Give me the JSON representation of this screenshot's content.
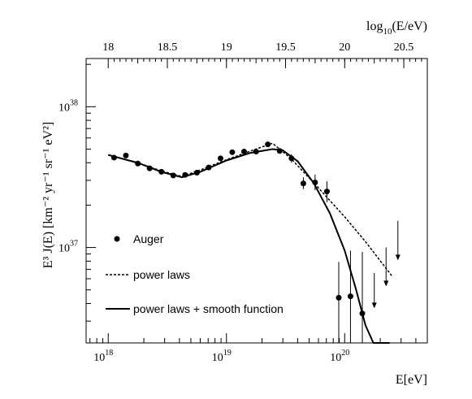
{
  "chart_data": {
    "type": "scatter",
    "xlabel": "E[eV]",
    "x2label_base": "log",
    "x2label_sub": "10",
    "x2label_rest": "(E/eV)",
    "ylabel": "E³ J(E) [km⁻² yr⁻¹ sr⁻¹ eV²]",
    "x_scale": "log",
    "y_scale": "log",
    "xlim": [
      6.5e+17,
      5e+20
    ],
    "ylim": [
      2.1e+36,
      2.2e+38
    ],
    "x_ticks": [
      {
        "base": "10",
        "exp": "18",
        "value": 1e+18
      },
      {
        "base": "10",
        "exp": "19",
        "value": 1e+19
      },
      {
        "base": "10",
        "exp": "20",
        "value": 1e+20
      }
    ],
    "y_ticks": [
      {
        "base": "10",
        "exp": "37",
        "value": 1e+37
      },
      {
        "base": "10",
        "exp": "38",
        "value": 1e+38
      }
    ],
    "x2_ticks": [
      "18",
      "18.5",
      "19",
      "19.5",
      "20",
      "20.5"
    ],
    "x2_tick_values": [
      18,
      18.5,
      19,
      19.5,
      20,
      20.5
    ],
    "legend_position": "bottom-left",
    "series": [
      {
        "name": "Auger",
        "kind": "points",
        "points": [
          {
            "x": 1.12e+18,
            "y": 4.35e+37
          },
          {
            "x": 1.41e+18,
            "y": 4.5e+37
          },
          {
            "x": 1.78e+18,
            "y": 3.95e+37
          },
          {
            "x": 2.24e+18,
            "y": 3.65e+37
          },
          {
            "x": 2.82e+18,
            "y": 3.45e+37
          },
          {
            "x": 3.55e+18,
            "y": 3.25e+37
          },
          {
            "x": 4.47e+18,
            "y": 3.28e+37
          },
          {
            "x": 5.62e+18,
            "y": 3.4e+37
          },
          {
            "x": 7.08e+18,
            "y": 3.7e+37
          },
          {
            "x": 8.91e+18,
            "y": 4.3e+37
          },
          {
            "x": 1.12e+19,
            "y": 4.75e+37
          },
          {
            "x": 1.41e+19,
            "y": 4.8e+37
          },
          {
            "x": 1.78e+19,
            "y": 4.8e+37
          },
          {
            "x": 2.24e+19,
            "y": 5.4e+37
          },
          {
            "x": 2.82e+19,
            "y": 4.85e+37
          },
          {
            "x": 3.55e+19,
            "y": 4.3e+37,
            "err_lo": 4e+37,
            "err_hi": 4.6e+37
          },
          {
            "x": 4.47e+19,
            "y": 2.85e+37,
            "err_lo": 2.6e+37,
            "err_hi": 3.15e+37
          },
          {
            "x": 5.62e+19,
            "y": 2.9e+37,
            "err_lo": 2.55e+37,
            "err_hi": 3.3e+37
          },
          {
            "x": 7.08e+19,
            "y": 2.5e+37,
            "err_lo": 2.1e+37,
            "err_hi": 2.95e+37
          },
          {
            "x": 8.91e+19,
            "y": 4.4e+36,
            "err_lo": 2.1e+36,
            "err_hi": 7.9e+36
          },
          {
            "x": 1.12e+20,
            "y": 4.5e+36,
            "err_lo": 2.1e+36,
            "err_hi": 9.5e+36
          },
          {
            "x": 1.41e+20,
            "y": 3.4e+36,
            "err_lo": 2.1e+36,
            "err_hi": 9.3e+36
          }
        ]
      },
      {
        "name": "upper limits",
        "kind": "arrows",
        "points": [
          {
            "x": 1.78e+20,
            "y_top": 6.6e+36,
            "y_tip": 3.7e+36
          },
          {
            "x": 2.24e+20,
            "y_top": 1e+37,
            "y_tip": 5.3e+36
          },
          {
            "x": 2.82e+20,
            "y_top": 1.55e+37,
            "y_tip": 8.1e+36
          }
        ]
      },
      {
        "name": "power laws",
        "kind": "dashed",
        "points": [
          {
            "x": 1e+18,
            "y": 4.55e+37
          },
          {
            "x": 1.8e+18,
            "y": 3.98e+37
          },
          {
            "x": 2.8e+18,
            "y": 3.5e+37
          },
          {
            "x": 4.2e+18,
            "y": 3.2e+37
          },
          {
            "x": 6e+18,
            "y": 3.55e+37
          },
          {
            "x": 1e+19,
            "y": 4.2e+37
          },
          {
            "x": 1.6e+19,
            "y": 4.85e+37
          },
          {
            "x": 2.45e+19,
            "y": 5.5e+37
          },
          {
            "x": 3.5e+19,
            "y": 4.3e+37
          },
          {
            "x": 6e+19,
            "y": 2.65e+37
          },
          {
            "x": 1e+20,
            "y": 1.65e+37
          },
          {
            "x": 1.5e+20,
            "y": 1.1e+37
          },
          {
            "x": 2.5e+20,
            "y": 6.3e+36
          }
        ]
      },
      {
        "name": "power laws + smooth function",
        "kind": "solid",
        "points": [
          {
            "x": 1e+18,
            "y": 4.55e+37
          },
          {
            "x": 1.8e+18,
            "y": 3.98e+37
          },
          {
            "x": 2.8e+18,
            "y": 3.45e+37
          },
          {
            "x": 4.2e+18,
            "y": 3.15e+37
          },
          {
            "x": 6e+18,
            "y": 3.45e+37
          },
          {
            "x": 1e+19,
            "y": 4.15e+37
          },
          {
            "x": 1.6e+19,
            "y": 4.7e+37
          },
          {
            "x": 2.45e+19,
            "y": 5e+37
          },
          {
            "x": 3e+19,
            "y": 4.9e+37
          },
          {
            "x": 4e+19,
            "y": 4.1e+37
          },
          {
            "x": 5.5e+19,
            "y": 2.85e+37
          },
          {
            "x": 7.5e+19,
            "y": 1.75e+37
          },
          {
            "x": 1e+20,
            "y": 9.5e+36
          },
          {
            "x": 1.25e+20,
            "y": 5e+36
          },
          {
            "x": 1.5e+20,
            "y": 2.8e+36
          },
          {
            "x": 1.75e+20,
            "y": 2.1e+36
          },
          {
            "x": 2.4e+20,
            "y": 2.1e+36
          }
        ]
      }
    ],
    "legend": [
      {
        "label": "Auger",
        "kind": "points"
      },
      {
        "label": "power laws",
        "kind": "dashed"
      },
      {
        "label": "power laws + smooth function",
        "kind": "solid"
      }
    ]
  }
}
